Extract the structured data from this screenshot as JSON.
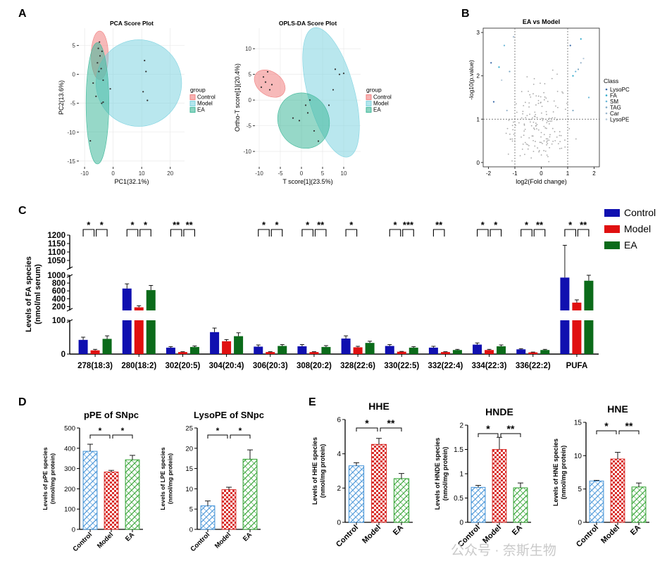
{
  "panel_letters": [
    "A",
    "B",
    "C",
    "D",
    "E"
  ],
  "legend_group_title": "group",
  "groups": [
    "Control",
    "Model",
    "EA"
  ],
  "watermark": "公众号 · 奈斯生物",
  "chart_data": [
    {
      "id": "pca",
      "type": "scatter",
      "title": "PCA Score Plot",
      "xlabel": "PC1(32.1%)",
      "ylabel": "PC2(13.6%)",
      "xlim": [
        -12,
        25
      ],
      "ylim": [
        -16,
        8
      ],
      "xticks": [
        -10,
        0,
        10,
        20
      ],
      "yticks": [
        5,
        0,
        -5,
        -10,
        -15
      ],
      "series": [
        {
          "name": "Control",
          "points": [
            [
              -5.2,
              4.5
            ],
            [
              -4.6,
              3.2
            ],
            [
              -5.5,
              2.0
            ],
            [
              -4.8,
              5.6
            ],
            [
              -3.9,
              4.0
            ],
            [
              -4.2,
              1.0
            ]
          ]
        },
        {
          "name": "Model",
          "points": [
            [
              10.5,
              -3.0
            ],
            [
              11.5,
              0.5
            ],
            [
              12.0,
              -4.5
            ],
            [
              -1.0,
              -2.5
            ],
            [
              11.0,
              2.4
            ],
            [
              -3.5,
              -4.8
            ]
          ]
        },
        {
          "name": "EA",
          "points": [
            [
              -8.0,
              -11.5
            ],
            [
              -6.0,
              -3.8
            ],
            [
              -4.0,
              -5.0
            ],
            [
              -5.0,
              0.5
            ],
            [
              -7.0,
              -1.5
            ],
            [
              -3.5,
              -1.0
            ]
          ]
        }
      ],
      "ellipses": [
        {
          "name": "Control",
          "cx": -4.7,
          "cy": 3.3,
          "rx": 3.0,
          "ry": 4.2,
          "angle": 0
        },
        {
          "name": "Model",
          "cx": 9.0,
          "cy": -1.5,
          "rx": 15.0,
          "ry": 7.5,
          "angle": 0
        },
        {
          "name": "EA",
          "cx": -5.5,
          "cy": -5.0,
          "rx": 4.0,
          "ry": 10.5,
          "angle": 0
        }
      ],
      "legend_position": "right"
    },
    {
      "id": "oplsda",
      "type": "scatter",
      "title": "OPLS-DA Score Plot",
      "xlabel": "T score[1](23.5%)",
      "ylabel": "Ortho-T score[1](20.4%)",
      "xlim": [
        -11,
        14
      ],
      "ylim": [
        -13,
        14
      ],
      "xticks": [
        -10,
        -5,
        0,
        5,
        10
      ],
      "yticks": [
        10,
        5,
        0,
        -5,
        -10
      ],
      "series": [
        {
          "name": "Control",
          "points": [
            [
              -8.5,
              3.5
            ],
            [
              -9.0,
              4.5
            ],
            [
              -7.5,
              2.0
            ],
            [
              -8.0,
              5.5
            ],
            [
              -7.0,
              3.0
            ],
            [
              -9.5,
              2.5
            ]
          ]
        },
        {
          "name": "Model",
          "points": [
            [
              8.0,
              6.0
            ],
            [
              9.0,
              5.0
            ],
            [
              10.0,
              5.2
            ],
            [
              7.5,
              2.0
            ],
            [
              6.5,
              -1.0
            ],
            [
              4.0,
              -8.0
            ]
          ]
        },
        {
          "name": "EA",
          "points": [
            [
              -2.0,
              -3.5
            ],
            [
              1.0,
              -1.0
            ],
            [
              1.5,
              -2.5
            ],
            [
              3.0,
              -6.0
            ],
            [
              -0.5,
              -4.0
            ],
            [
              2.0,
              0.0
            ]
          ]
        }
      ],
      "ellipses": [
        {
          "name": "Control",
          "cx": -7.5,
          "cy": 3.2,
          "rx": 4.0,
          "ry": 2.3,
          "angle": -35
        },
        {
          "name": "Model",
          "cx": 7.0,
          "cy": 1.5,
          "rx": 5.5,
          "ry": 13.0,
          "angle": 15
        },
        {
          "name": "EA",
          "cx": 0.5,
          "cy": -4.0,
          "rx": 6.0,
          "ry": 5.5,
          "angle": 25
        }
      ],
      "legend_position": "right"
    },
    {
      "id": "volcano",
      "type": "scatter",
      "title": "EA vs Model",
      "xlabel": "log2(Fold change)",
      "ylabel": "-log10(p.value)",
      "xlim": [
        -2.2,
        2.2
      ],
      "ylim": [
        -0.1,
        3.1
      ],
      "xticks": [
        -2,
        -1,
        0,
        1,
        2
      ],
      "yticks": [
        0,
        1,
        2,
        3
      ],
      "thresholds": {
        "x": [
          -1,
          1
        ],
        "y": 1
      },
      "legend_title": "Class",
      "classes": [
        "LysoPC",
        "FA",
        "SM",
        "TAG",
        "Car",
        "LysoPE"
      ],
      "class_colors": [
        "#3b6aa8",
        "#2aa7c9",
        "#6bb7d8",
        "#7da8c4",
        "#9bb5cc",
        "#b7cadb"
      ],
      "significant": [
        [
          -1.9,
          2.3
        ],
        [
          -1.6,
          2.2
        ],
        [
          -1.4,
          2.7
        ],
        [
          -1.2,
          2.1
        ],
        [
          -1.05,
          2.9
        ],
        [
          -1.5,
          1.9
        ],
        [
          -1.8,
          1.4
        ],
        [
          1.2,
          2.0
        ],
        [
          1.3,
          2.1
        ],
        [
          1.4,
          2.15
        ],
        [
          1.5,
          2.3
        ],
        [
          1.6,
          2.4
        ],
        [
          1.1,
          2.7
        ],
        [
          1.5,
          2.85
        ],
        [
          1.8,
          1.5
        ],
        [
          1.2,
          1.2
        ],
        [
          -1.3,
          1.2
        ]
      ],
      "legend_position": "right"
    },
    {
      "id": "fa_species",
      "type": "bar",
      "ylabel": "Levels of FA species\n(nmol/ml serum)",
      "categories": [
        "278(18:3)",
        "280(18:2)",
        "302(20:5)",
        "304(20:4)",
        "306(20:3)",
        "308(20:2)",
        "328(22:6)",
        "330(22:5)",
        "332(22:4)",
        "334(22:3)",
        "336(22:2)",
        "PUFA"
      ],
      "series": [
        {
          "name": "Control",
          "values": [
            42,
            660,
            19,
            65,
            22,
            23,
            46,
            24,
            19,
            28,
            14,
            940
          ]
        },
        {
          "name": "Model",
          "values": [
            11,
            180,
            6,
            38,
            6,
            6,
            20,
            7,
            6,
            12,
            5,
            300
          ]
        },
        {
          "name": "EA",
          "values": [
            45,
            620,
            21,
            53,
            24,
            21,
            33,
            19,
            12,
            23,
            12,
            860
          ]
        }
      ],
      "errors": [
        [
          8,
          120,
          3,
          12,
          5,
          5,
          8,
          4,
          4,
          5,
          2,
          200
        ],
        [
          3,
          40,
          1,
          5,
          1,
          1,
          3,
          1,
          1,
          2,
          1,
          70
        ],
        [
          9,
          120,
          3,
          10,
          4,
          4,
          5,
          3,
          2,
          4,
          2,
          140
        ]
      ],
      "yticks": [
        0,
        100,
        200,
        400,
        600,
        800,
        1000,
        1050,
        1100,
        1150,
        1200
      ],
      "y_break_segments": [
        [
          0,
          100
        ],
        [
          100,
          1000
        ],
        [
          1000,
          1200
        ]
      ],
      "significance": [
        [
          "*",
          "*"
        ],
        [
          "*",
          "*"
        ],
        [
          "**",
          "**"
        ],
        [
          "",
          ""
        ],
        [
          "*",
          "*"
        ],
        [
          "*",
          "**"
        ],
        [
          "*",
          ""
        ],
        [
          "*",
          "***"
        ],
        [
          "**",
          ""
        ],
        [
          "*",
          "*"
        ],
        [
          "*",
          "**"
        ],
        [
          "*",
          "**"
        ]
      ],
      "legend_position": "top-right"
    },
    {
      "id": "ppe",
      "type": "bar",
      "title": "pPE of SNpc",
      "ylabel": "Levels of pPE species\n(nmol/mg protein)",
      "categories": [
        "Control",
        "Model",
        "EA"
      ],
      "values": [
        385,
        283,
        343
      ],
      "errors": [
        35,
        8,
        22
      ],
      "ylim": [
        0,
        500
      ],
      "yticks": [
        0,
        100,
        200,
        300,
        400,
        500
      ],
      "significance": [
        "*",
        "*"
      ]
    },
    {
      "id": "lysope",
      "type": "bar",
      "title": "LysoPE of SNpc",
      "ylabel": "Levels of LPE species\n(nmol/mg protein)",
      "categories": [
        "Control",
        "Model",
        "EA"
      ],
      "values": [
        5.8,
        9.8,
        17.3
      ],
      "errors": [
        1.2,
        0.6,
        2.3
      ],
      "ylim": [
        0,
        25
      ],
      "yticks": [
        0,
        5,
        10,
        15,
        20,
        25
      ],
      "significance": [
        "*",
        "*"
      ]
    },
    {
      "id": "hhe",
      "type": "bar",
      "title": "HHE",
      "ylabel": "Levels of HHE species\n(nmol/mg protein)",
      "categories": [
        "Control",
        "Model",
        "EA"
      ],
      "values": [
        3.3,
        4.55,
        2.55
      ],
      "errors": [
        0.18,
        0.35,
        0.3
      ],
      "ylim": [
        0,
        6
      ],
      "yticks": [
        0,
        2,
        4,
        6
      ],
      "significance": [
        "*",
        "**"
      ]
    },
    {
      "id": "hnde",
      "type": "bar",
      "title": "HNDE",
      "ylabel": "Levels of HNDE species\n(nmol/mg protein)",
      "categories": [
        "Control",
        "Model",
        "EA"
      ],
      "values": [
        0.72,
        1.5,
        0.71
      ],
      "errors": [
        0.04,
        0.25,
        0.1
      ],
      "ylim": [
        0,
        2.0
      ],
      "yticks": [
        0,
        0.5,
        1.0,
        1.5,
        2.0
      ],
      "significance": [
        "*",
        "**"
      ]
    },
    {
      "id": "hne",
      "type": "bar",
      "title": "HNE",
      "ylabel": "Levels of HNE species\n(nmol/mg protein)",
      "categories": [
        "Control",
        "Model",
        "EA"
      ],
      "values": [
        6.2,
        9.5,
        5.3
      ],
      "errors": [
        0.1,
        1.0,
        0.6
      ],
      "ylim": [
        0,
        15
      ],
      "yticks": [
        0,
        5,
        10,
        15
      ],
      "significance": [
        "*",
        "**"
      ]
    }
  ],
  "colors": {
    "control": "#1010b0",
    "model": "#e01010",
    "ea": "#0b6b1a",
    "pca_control": "#f08080",
    "pca_model": "#7fd3e0",
    "pca_ea": "#3fb89a",
    "hatch_control": "#3d8fd6",
    "hatch_model": "#d9302c",
    "hatch_ea": "#2ca02c"
  }
}
